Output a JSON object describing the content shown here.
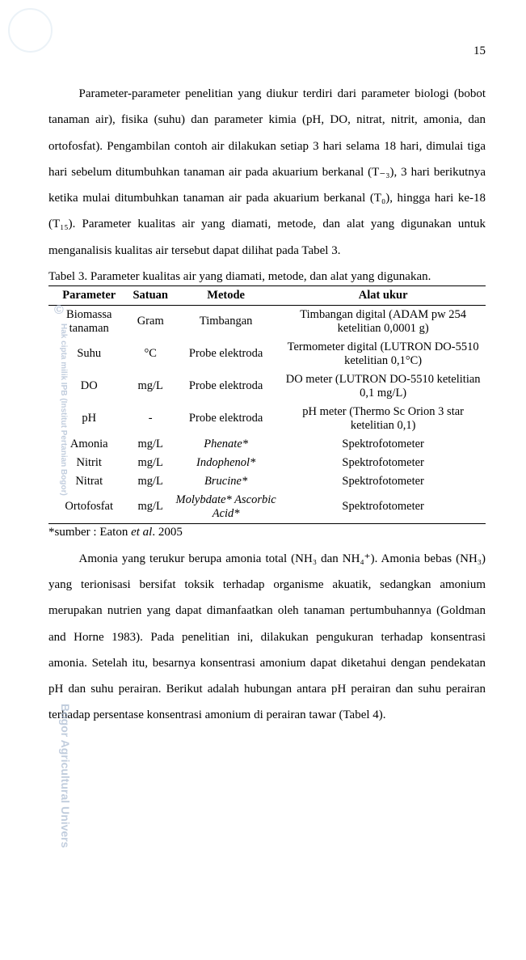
{
  "page_number": "15",
  "watermarks": {
    "copyright": "©",
    "vertical": "Hak cipta milik IPB (Institut Pertanian Bogor)",
    "bogor": "Bogor Agricultural Univers"
  },
  "paragraph1": "Parameter-parameter penelitian yang diukur terdiri dari parameter biologi (bobot tanaman air), fisika (suhu) dan parameter kimia (pH, DO, nitrat, nitrit, amonia, dan ortofosfat).  Pengambilan contoh air dilakukan setiap 3 hari selama 18 hari, dimulai tiga hari sebelum ditumbuhkan tanaman air pada akuarium berkanal (T₋₃), 3 hari berikutnya ketika mulai ditumbuhkan tanaman air pada akuarium berkanal (T₀), hingga hari ke-18 (T₁₅).  Parameter kualitas air yang diamati, metode, dan alat yang digunakan untuk menganalisis kualitas air tersebut dapat dilihat pada Tabel 3.",
  "table_caption": "Tabel 3. Parameter kualitas air yang diamati, metode, dan alat yang digunakan.",
  "table": {
    "headers": [
      "Parameter",
      "Satuan",
      "Metode",
      "Alat ukur"
    ],
    "rows": [
      {
        "param": "Biomassa tanaman",
        "satuan": "Gram",
        "metode": "Timbangan",
        "alat": "Timbangan digital (ADAM pw 254 ketelitian 0,0001 g)"
      },
      {
        "param": "Suhu",
        "satuan": "°C",
        "metode": "Probe elektroda",
        "alat": "Termometer digital (LUTRON DO-5510 ketelitian 0,1°C)"
      },
      {
        "param": "DO",
        "satuan": "mg/L",
        "metode": "Probe elektroda",
        "alat": "DO meter (LUTRON DO-5510 ketelitian 0,1 mg/L)"
      },
      {
        "param": "pH",
        "satuan": "-",
        "metode": "Probe elektroda",
        "alat": "pH meter (Thermo Sc Orion 3 star ketelitian 0,1)"
      },
      {
        "param": "Amonia",
        "satuan": "mg/L",
        "metode_italic": "Phenate*",
        "alat": "Spektrofotometer"
      },
      {
        "param": "Nitrit",
        "satuan": "mg/L",
        "metode_italic": "Indophenol*",
        "alat": "Spektrofotometer"
      },
      {
        "param": "Nitrat",
        "satuan": "mg/L",
        "metode_italic": "Brucine*",
        "alat": "Spektrofotometer"
      },
      {
        "param": "Ortofosfat",
        "satuan": "mg/L",
        "metode_italic": "Molybdate* Ascorbic Acid*",
        "alat": "Spektrofotometer"
      }
    ]
  },
  "footnote_prefix": "*sumber : Eaton ",
  "footnote_italic": "et al",
  "footnote_suffix": ". 2005",
  "paragraph2": "Amonia yang terukur berupa amonia total (NH₃ dan NH₄⁺).  Amonia bebas (NH₃) yang terionisasi bersifat toksik terhadap organisme akuatik, sedangkan amonium merupakan nutrien yang dapat dimanfaatkan oleh tanaman pertumbuhannya (Goldman and Horne 1983).  Pada penelitian ini, dilakukan pengukuran terhadap konsentrasi amonia. Setelah itu, besarnya konsentrasi amonium dapat diketahui dengan pendekatan pH dan suhu perairan.  Berikut adalah hubungan antara pH perairan dan suhu perairan terhadap persentase konsentrasi amonium di perairan tawar (Tabel 4)."
}
